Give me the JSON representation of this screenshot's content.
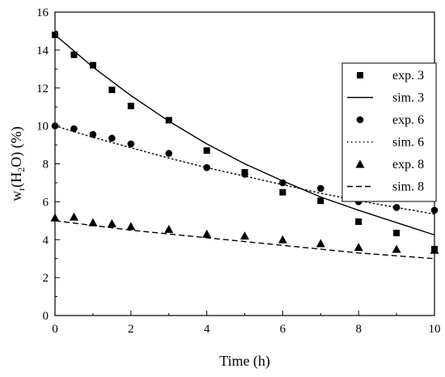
{
  "chart_data": {
    "type": "scatter",
    "xlabel": "Time (h)",
    "ylabel": {
      "prefix": "w",
      "prefix_sub": "r",
      "open": "(H",
      "sub": "2",
      "close": "O) (%)"
    },
    "xlim": [
      0,
      10
    ],
    "ylim": [
      0,
      16
    ],
    "xticks": [
      "0",
      "2",
      "4",
      "6",
      "8",
      "10"
    ],
    "yticks": [
      "0",
      "2",
      "4",
      "6",
      "8",
      "10",
      "12",
      "14",
      "16"
    ],
    "grid": false,
    "legend_position": "right",
    "series": [
      {
        "name": "exp. 3",
        "kind": "points",
        "marker": "square",
        "x": [
          0,
          0.5,
          1,
          1.5,
          2,
          3,
          4,
          5,
          6,
          7,
          8,
          9,
          10
        ],
        "y": [
          14.8,
          13.75,
          13.2,
          11.9,
          11.05,
          10.3,
          8.7,
          7.55,
          6.5,
          6.05,
          4.95,
          4.35,
          3.5
        ]
      },
      {
        "name": "sim. 3",
        "kind": "line",
        "dash": "solid",
        "x": [
          0,
          1,
          2,
          3,
          4,
          5,
          6,
          7,
          8,
          9,
          10
        ],
        "y": [
          14.8,
          13.1,
          11.6,
          10.25,
          9.05,
          8.0,
          7.1,
          6.25,
          5.55,
          4.9,
          4.25
        ]
      },
      {
        "name": "exp. 6",
        "kind": "points",
        "marker": "circle",
        "x": [
          0,
          0.5,
          1,
          1.5,
          2,
          3,
          4,
          5,
          6,
          7,
          8,
          9,
          10
        ],
        "y": [
          10.0,
          9.85,
          9.55,
          9.35,
          9.05,
          8.55,
          7.8,
          7.45,
          7.0,
          6.7,
          6.0,
          5.7,
          5.55
        ]
      },
      {
        "name": "sim. 6",
        "kind": "line",
        "dash": "dotted",
        "x": [
          0,
          1,
          2,
          3,
          4,
          5,
          6,
          7,
          8,
          9,
          10
        ],
        "y": [
          10.0,
          9.4,
          8.85,
          8.3,
          7.8,
          7.35,
          6.9,
          6.45,
          6.05,
          5.7,
          5.35
        ]
      },
      {
        "name": "exp. 8",
        "kind": "points",
        "marker": "triangle",
        "x": [
          0,
          0.5,
          1,
          1.5,
          2,
          3,
          4,
          5,
          6,
          7,
          8,
          9,
          10
        ],
        "y": [
          5.15,
          5.2,
          4.9,
          4.85,
          4.7,
          4.55,
          4.3,
          4.2,
          4.0,
          3.8,
          3.6,
          3.5,
          3.45
        ]
      },
      {
        "name": "sim. 8",
        "kind": "line",
        "dash": "dashed",
        "x": [
          0,
          1,
          2,
          3,
          4,
          5,
          6,
          7,
          8,
          9,
          10
        ],
        "y": [
          5.0,
          4.75,
          4.5,
          4.3,
          4.1,
          3.9,
          3.7,
          3.5,
          3.3,
          3.15,
          3.0
        ]
      }
    ]
  },
  "colors": {
    "ink": "#000000",
    "background": "#ffffff"
  }
}
